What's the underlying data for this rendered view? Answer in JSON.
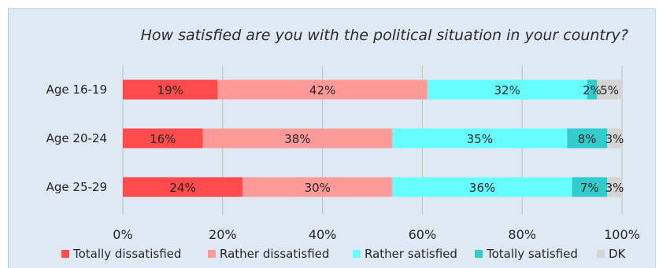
{
  "chart_data": {
    "type": "bar",
    "orientation": "horizontal",
    "stacked": true,
    "title": "How satisfied are you with the political situation in your country?",
    "categories": [
      "Age 16-19",
      "Age 20-24",
      "Age 25-29"
    ],
    "series": [
      {
        "name": "Totally dissatisfied",
        "color": "#ff4b4b",
        "values": [
          19,
          16,
          24
        ],
        "labels": [
          "19%",
          "16%",
          "24%"
        ]
      },
      {
        "name": "Rather dissatisfied",
        "color": "#ff9a98",
        "values": [
          42,
          38,
          30
        ],
        "labels": [
          "42%",
          "38%",
          "30%"
        ]
      },
      {
        "name": "Rather satisfied",
        "color": "#66ffff",
        "values": [
          32,
          35,
          36
        ],
        "labels": [
          "32%",
          "35%",
          "36%"
        ]
      },
      {
        "name": "Totally satisfied",
        "color": "#33cccc",
        "values": [
          2,
          8,
          7
        ],
        "labels": [
          "2%",
          "8%",
          "7%"
        ]
      },
      {
        "name": "DK",
        "color": "#d4d4d4",
        "values": [
          5,
          3,
          3
        ],
        "labels": [
          "5%",
          "3%",
          "3%"
        ]
      }
    ],
    "xlim": [
      0,
      100
    ],
    "xticks": [
      "0%",
      "20%",
      "40%",
      "60%",
      "80%",
      "100%"
    ],
    "grid": true,
    "legend": "bottom"
  }
}
